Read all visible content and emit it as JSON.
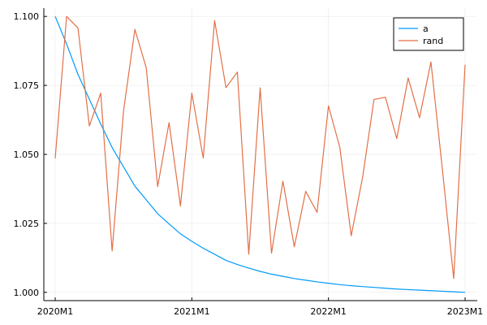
{
  "chart_data": {
    "type": "line",
    "title": "",
    "xlabel": "",
    "ylabel": "",
    "x": [
      "2020M1",
      "2020M2",
      "2020M3",
      "2020M4",
      "2020M5",
      "2020M6",
      "2020M7",
      "2020M8",
      "2020M9",
      "2020M10",
      "2020M11",
      "2020M12",
      "2021M1",
      "2021M2",
      "2021M3",
      "2021M4",
      "2021M5",
      "2021M6",
      "2021M7",
      "2021M8",
      "2021M9",
      "2021M10",
      "2021M11",
      "2021M12",
      "2022M1",
      "2022M2",
      "2022M3",
      "2022M4",
      "2022M5",
      "2022M6",
      "2022M7",
      "2022M8",
      "2022M9",
      "2022M10",
      "2022M11",
      "2022M12",
      "2023M1"
    ],
    "xticks": [
      "2020M1",
      "2021M1",
      "2022M1",
      "2023M1"
    ],
    "yticks": [
      "1.000",
      "1.025",
      "1.050",
      "1.075",
      "1.100"
    ],
    "ylim": [
      0.997,
      1.103
    ],
    "grid": true,
    "legend_position": "top-right",
    "series": [
      {
        "name": "a",
        "color": "#009AFA",
        "values": [
          1.1,
          1.09,
          1.079,
          1.07,
          1.061,
          1.0525,
          1.0455,
          1.0385,
          1.0335,
          1.0285,
          1.0248,
          1.0212,
          1.0185,
          1.016,
          1.0138,
          1.0116,
          1.0101,
          1.0088,
          1.0076,
          1.0066,
          1.0058,
          1.005,
          1.0044,
          1.0038,
          1.0033,
          1.0028,
          1.0024,
          1.0021,
          1.0018,
          1.0015,
          1.0012,
          1.001,
          1.0008,
          1.0006,
          1.0004,
          1.0002,
          1.0
        ]
      },
      {
        "name": "rand",
        "color": "#E36F47",
        "values": [
          1.0485,
          1.1,
          1.0958,
          1.0603,
          1.0722,
          1.015,
          1.0657,
          1.0953,
          1.0813,
          1.0383,
          1.0615,
          1.0313,
          1.0722,
          1.0487,
          1.0985,
          1.0742,
          1.0798,
          1.0138,
          1.0741,
          1.0142,
          1.0403,
          1.0165,
          1.0366,
          1.029,
          1.0676,
          1.0525,
          1.0205,
          1.0417,
          1.0699,
          1.0707,
          1.0557,
          1.0777,
          1.0633,
          1.0835,
          1.0448,
          1.005,
          1.0825
        ]
      }
    ]
  }
}
